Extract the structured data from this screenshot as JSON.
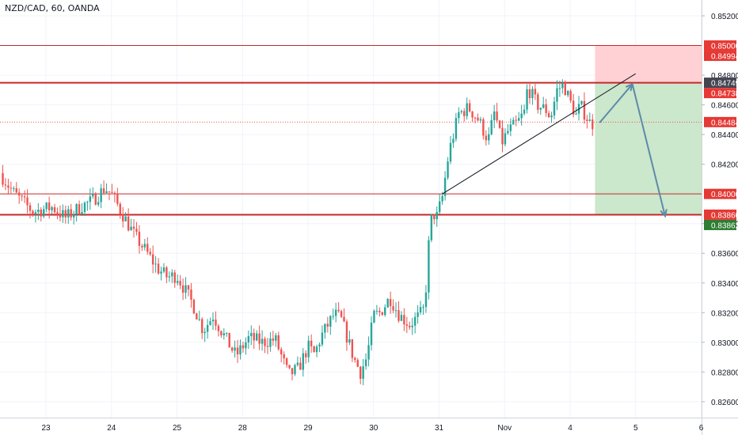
{
  "header": {
    "title": "NZD/CAD, 60, OANDA"
  },
  "colors": {
    "up": "#26a69a",
    "down": "#ef5350",
    "level_line": "#c62828",
    "grid": "#f0f3fa",
    "stop_zone": "#ffcdd2",
    "target_zone": "#c8e6c9",
    "arrow": "#5d8aa8",
    "axis_text": "#131722"
  },
  "chart_data": {
    "type": "candlestick",
    "symbol": "NZD/CAD",
    "interval": "60",
    "source": "OANDA",
    "ylim": [
      0.8253,
      0.8528
    ],
    "y_ticks": [
      "0.85200",
      "0.84800",
      "0.84600",
      "0.84400",
      "0.84200",
      "0.83800",
      "0.83600",
      "0.83400",
      "0.83200",
      "0.83000",
      "0.82800",
      "0.82600"
    ],
    "x_ticks": [
      {
        "day": 0,
        "label": "23"
      },
      {
        "day": 1,
        "label": "24"
      },
      {
        "day": 2,
        "label": "25"
      },
      {
        "day": 3,
        "label": "28"
      },
      {
        "day": 4,
        "label": "29"
      },
      {
        "day": 5,
        "label": "30"
      },
      {
        "day": 6,
        "label": "31"
      },
      {
        "day": 7,
        "label": "Nov"
      },
      {
        "day": 8,
        "label": "4"
      },
      {
        "day": 9,
        "label": "5"
      },
      {
        "day": 10,
        "label": "6"
      }
    ],
    "path_close": [
      [
        -0.7,
        0.8414
      ],
      [
        -0.5,
        0.8401
      ],
      [
        -0.2,
        0.8388
      ],
      [
        0.1,
        0.8391
      ],
      [
        0.3,
        0.8384
      ],
      [
        0.55,
        0.8392
      ],
      [
        0.7,
        0.8395
      ],
      [
        0.9,
        0.8404
      ],
      [
        1.0,
        0.84
      ],
      [
        1.1,
        0.8392
      ],
      [
        1.2,
        0.8384
      ],
      [
        1.35,
        0.8372
      ],
      [
        1.5,
        0.8363
      ],
      [
        1.7,
        0.835
      ],
      [
        1.85,
        0.8344
      ],
      [
        2.0,
        0.8345
      ],
      [
        2.1,
        0.8337
      ],
      [
        2.25,
        0.8325
      ],
      [
        2.4,
        0.8308
      ],
      [
        2.55,
        0.8318
      ],
      [
        2.75,
        0.8302
      ],
      [
        2.9,
        0.8291
      ],
      [
        3.1,
        0.8303
      ],
      [
        3.3,
        0.83
      ],
      [
        3.5,
        0.8302
      ],
      [
        3.6,
        0.829
      ],
      [
        3.7,
        0.8278
      ],
      [
        3.85,
        0.8282
      ],
      [
        4.0,
        0.8297
      ],
      [
        4.1,
        0.8292
      ],
      [
        4.2,
        0.8304
      ],
      [
        4.4,
        0.8319
      ],
      [
        4.5,
        0.8316
      ],
      [
        4.6,
        0.8303
      ],
      [
        4.7,
        0.8289
      ],
      [
        4.8,
        0.828
      ],
      [
        4.9,
        0.829
      ],
      [
        5.0,
        0.8318
      ],
      [
        5.1,
        0.832
      ],
      [
        5.25,
        0.833
      ],
      [
        5.4,
        0.8318
      ],
      [
        5.55,
        0.8312
      ],
      [
        5.7,
        0.8318
      ],
      [
        5.78,
        0.8323
      ],
      [
        5.84,
        0.8365
      ],
      [
        5.9,
        0.839
      ],
      [
        5.95,
        0.8382
      ],
      [
        6.05,
        0.8398
      ],
      [
        6.15,
        0.8428
      ],
      [
        6.3,
        0.8454
      ],
      [
        6.45,
        0.8458
      ],
      [
        6.6,
        0.845
      ],
      [
        6.75,
        0.8436
      ],
      [
        6.85,
        0.8456
      ],
      [
        6.95,
        0.8434
      ],
      [
        7.05,
        0.8442
      ],
      [
        7.2,
        0.8448
      ],
      [
        7.3,
        0.8455
      ],
      [
        7.35,
        0.8472
      ],
      [
        7.5,
        0.846
      ],
      [
        7.65,
        0.8456
      ],
      [
        7.7,
        0.8451
      ],
      [
        7.8,
        0.847
      ],
      [
        7.9,
        0.8474
      ],
      [
        8.0,
        0.8462
      ],
      [
        8.1,
        0.8452
      ],
      [
        8.15,
        0.846
      ],
      [
        8.2,
        0.8456
      ],
      [
        8.3,
        0.8448
      ],
      [
        8.38,
        0.8447
      ]
    ],
    "levels": [
      {
        "value": 0.85,
        "label": "0.85000"
      },
      {
        "value": 0.84749,
        "label": "0.84749",
        "bold": true
      },
      {
        "value": 0.84,
        "label": "0.84000"
      },
      {
        "value": 0.8386,
        "label": "0.83860",
        "bold": true
      }
    ],
    "price_tags": [
      {
        "value": 0.85,
        "label": "0.85000",
        "bg": "#e53935"
      },
      {
        "value": 0.84994,
        "label": "0.84994",
        "bg": "#e53935"
      },
      {
        "value": 0.84749,
        "label": "0.84749",
        "bg": "#434651"
      },
      {
        "value": 0.84738,
        "label": "0.84738",
        "bg": "#e53935"
      },
      {
        "value": 0.84484,
        "label": "0.84484",
        "bg": "#e53935"
      },
      {
        "value": 0.84,
        "label": "0.84000",
        "bg": "#e53935"
      },
      {
        "value": 0.8386,
        "label": "0.83860",
        "bg": "#e53935"
      },
      {
        "value": 0.83862,
        "label": "0.83862",
        "bg": "#2e7d32"
      }
    ],
    "dotted_level": 0.84484,
    "position": {
      "x_start": 8.38,
      "x_end": 10.1,
      "entry": 0.84749,
      "stop": 0.85,
      "target": 0.8386
    },
    "trendline": [
      [
        6.05,
        0.84
      ],
      [
        9.0,
        0.8481
      ]
    ],
    "arrow_path": [
      [
        8.45,
        0.8448
      ],
      [
        8.95,
        0.8474
      ],
      [
        9.45,
        0.8385
      ]
    ]
  }
}
